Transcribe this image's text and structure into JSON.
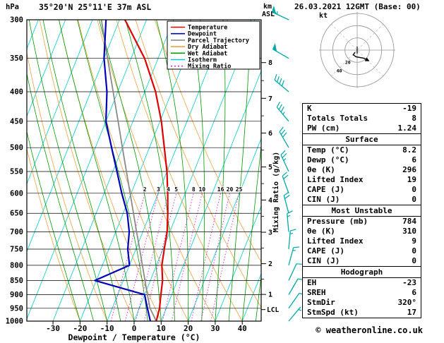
{
  "header": {
    "title": "35°20'N 25°11'E 37m ASL",
    "datetime": "26.03.2021 12GMT (Base: 00)"
  },
  "axes": {
    "pressure_unit": "hPa",
    "pressure_ticks": [
      300,
      350,
      400,
      450,
      500,
      550,
      600,
      650,
      700,
      750,
      800,
      850,
      900,
      950,
      1000
    ],
    "temp_ticks": [
      -30,
      -20,
      -10,
      0,
      10,
      20,
      30,
      40
    ],
    "xlabel": "Dewpoint / Temperature (°C)",
    "km_label_line1": "km",
    "km_label_line2": "ASL",
    "km_ticks": [
      1,
      2,
      3,
      4,
      5,
      6,
      7,
      8
    ],
    "lcl_label": "LCL",
    "lcl_pressure_hpa": 955,
    "mixing_ratio_axis_label": "Mixing Ratio (g/kg)",
    "mixing_ratio_values": [
      2,
      3,
      4,
      5,
      8,
      10,
      16,
      20,
      25
    ]
  },
  "legend": {
    "items": [
      {
        "label": "Temperature",
        "color": "#dd0000",
        "dash": ""
      },
      {
        "label": "Dewpoint",
        "color": "#0000bb",
        "dash": ""
      },
      {
        "label": "Parcel Trajectory",
        "color": "#8a8a8a",
        "dash": ""
      },
      {
        "label": "Dry Adiabat",
        "color": "#e8a33d",
        "dash": ""
      },
      {
        "label": "Wet Adiabat",
        "color": "#009900",
        "dash": ""
      },
      {
        "label": "Isotherm",
        "color": "#00cccc",
        "dash": ""
      },
      {
        "label": "Mixing Ratio",
        "color": "#dd22dd",
        "dash": "2,3"
      }
    ]
  },
  "chart_data": {
    "type": "line",
    "variant": "skew-t-log-p-sounding",
    "title": "35°20'N 25°11'E 37m ASL",
    "x_axis": {
      "label": "Dewpoint / Temperature (°C)",
      "ticks_c": [
        -30,
        -20,
        -10,
        0,
        10,
        20,
        30,
        40
      ]
    },
    "y_axis": {
      "label": "hPa",
      "scale": "log-pressure",
      "range_hpa": [
        300,
        1000
      ]
    },
    "pressure_hpa": [
      1000,
      950,
      900,
      850,
      800,
      750,
      700,
      650,
      600,
      550,
      500,
      450,
      400,
      350,
      300
    ],
    "temperature_c": [
      8.2,
      7.5,
      6,
      4.5,
      2,
      0.5,
      -1,
      -3.5,
      -6.5,
      -10,
      -14.5,
      -19.5,
      -26,
      -35,
      -48
    ],
    "dewpoint_c": [
      6,
      3,
      0,
      -20.5,
      -10,
      -13,
      -15,
      -18.5,
      -23.5,
      -28.5,
      -34,
      -40,
      -44,
      -50,
      -55
    ],
    "parcel_c": [
      8.2,
      4,
      1,
      -2,
      -5.2,
      -8.6,
      -12.3,
      -16.2,
      -20.4,
      -25,
      -30,
      -35.5,
      -41.7,
      -48.7,
      -56.7
    ],
    "wind_barbs": [
      {
        "p": 1000,
        "dir": 40,
        "kt": 5
      },
      {
        "p": 950,
        "dir": 35,
        "kt": 10
      },
      {
        "p": 900,
        "dir": 30,
        "kt": 10
      },
      {
        "p": 850,
        "dir": 25,
        "kt": 10
      },
      {
        "p": 800,
        "dir": 15,
        "kt": 15
      },
      {
        "p": 750,
        "dir": 5,
        "kt": 15
      },
      {
        "p": 700,
        "dir": 355,
        "kt": 15
      },
      {
        "p": 650,
        "dir": 345,
        "kt": 20
      },
      {
        "p": 600,
        "dir": 340,
        "kt": 20
      },
      {
        "p": 550,
        "dir": 335,
        "kt": 25
      },
      {
        "p": 500,
        "dir": 330,
        "kt": 30
      },
      {
        "p": 450,
        "dir": 320,
        "kt": 35
      },
      {
        "p": 400,
        "dir": 310,
        "kt": 40
      },
      {
        "p": 350,
        "dir": 300,
        "kt": 50
      },
      {
        "p": 300,
        "dir": 295,
        "kt": 55
      }
    ],
    "background": {
      "isotherm_step_c": 10,
      "dry_adiabat_step_c": 10,
      "wet_adiabat_step_c": 5
    },
    "legend_position": "top-right-inside"
  },
  "hodograph": {
    "unit_label": "kt",
    "rings_kt": [
      20,
      40,
      60
    ],
    "trace_uv_kt": [
      [
        -3.5,
        -3.5
      ],
      [
        -6.4,
        -7.7
      ],
      [
        -2,
        -11
      ],
      [
        4,
        -12
      ],
      [
        10,
        -13
      ],
      [
        14,
        -15
      ]
    ]
  },
  "table": {
    "sections": [
      {
        "header": null,
        "rows": [
          [
            "K",
            "-19"
          ],
          [
            "Totals Totals",
            "8"
          ],
          [
            "PW (cm)",
            "1.24"
          ]
        ]
      },
      {
        "header": "Surface",
        "rows": [
          [
            "Temp (°C)",
            "8.2"
          ],
          [
            "Dewp (°C)",
            "6"
          ],
          [
            "θe (K)",
            "296"
          ],
          [
            "Lifted Index",
            "19"
          ],
          [
            "CAPE (J)",
            "0"
          ],
          [
            "CIN (J)",
            "0"
          ]
        ]
      },
      {
        "header": "Most Unstable",
        "rows": [
          [
            "Pressure (mb)",
            "784"
          ],
          [
            "θe (K)",
            "310"
          ],
          [
            "Lifted Index",
            "9"
          ],
          [
            "CAPE (J)",
            "0"
          ],
          [
            "CIN (J)",
            "0"
          ]
        ]
      },
      {
        "header": "Hodograph",
        "rows": [
          [
            "EH",
            "-23"
          ],
          [
            "SREH",
            "6"
          ],
          [
            "StmDir",
            "320°"
          ],
          [
            "StmSpd (kt)",
            "17"
          ]
        ]
      }
    ]
  },
  "footer": "© weatheronline.co.uk",
  "colors": {
    "temperature": "#dd0000",
    "dewpoint": "#0000bb",
    "parcel": "#8a8a8a",
    "dry_adiabat": "#e8a33d",
    "wet_adiabat": "#009900",
    "isotherm": "#00cccc",
    "mixing_ratio": "#dd22dd",
    "wind_barb": "#00a8a8",
    "grid": "#000000"
  }
}
